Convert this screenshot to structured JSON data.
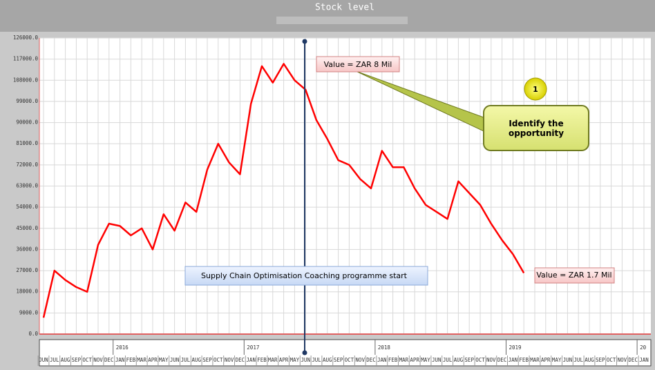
{
  "chart_data": {
    "type": "line",
    "title": "Stock level",
    "categories": [
      "JUN",
      "JUL",
      "AUG",
      "SEP",
      "OCT",
      "NOV",
      "DEC",
      "JAN",
      "FEB",
      "MAR",
      "APR",
      "MAY",
      "JUN",
      "JUL",
      "AUG",
      "SEP",
      "OCT",
      "NOV",
      "DEC",
      "JAN",
      "FEB",
      "MAR",
      "APR",
      "MAY",
      "JUN",
      "JUL",
      "AUG",
      "SEP",
      "OCT",
      "NOV",
      "DEC",
      "JAN",
      "FEB",
      "MAR",
      "APR",
      "MAY",
      "JUN",
      "JUL",
      "AUG",
      "SEP",
      "OCT",
      "NOV",
      "DEC",
      "JAN",
      "FEB",
      "MAR",
      "APR",
      "MAY",
      "JUN",
      "JUL",
      "AUG",
      "SEP",
      "OCT",
      "NOV",
      "DEC",
      "JAN"
    ],
    "year_row": [
      null,
      null,
      null,
      null,
      null,
      null,
      null,
      "2016",
      null,
      null,
      null,
      null,
      null,
      null,
      null,
      null,
      null,
      null,
      null,
      "2017",
      null,
      null,
      null,
      null,
      null,
      null,
      null,
      null,
      null,
      null,
      null,
      "2018",
      null,
      null,
      null,
      null,
      null,
      null,
      null,
      null,
      null,
      null,
      null,
      "2019",
      null,
      null,
      null,
      null,
      null,
      null,
      null,
      null,
      null,
      null,
      null,
      "20"
    ],
    "series": [
      {
        "color": "#ff0000",
        "values": [
          7000,
          27000,
          23000,
          20000,
          18000,
          38000,
          47000,
          46000,
          42000,
          45000,
          36000,
          51000,
          44000,
          56000,
          52000,
          70000,
          81000,
          73000,
          68000,
          98000,
          114000,
          107000,
          115000,
          108000,
          104000,
          91000,
          83000,
          74000,
          72000,
          66000,
          62000,
          78000,
          71000,
          71000,
          62000,
          55000,
          52000,
          49000,
          65000,
          60000,
          55000,
          47000,
          40000,
          34000,
          26000,
          null,
          null,
          null,
          null,
          null,
          null,
          null,
          null,
          null,
          null,
          null
        ]
      }
    ],
    "ylim": [
      0,
      126000
    ],
    "yticks": [
      {
        "value": 0,
        "label": "0.0"
      },
      {
        "value": 9000,
        "label": "9000.0"
      },
      {
        "value": 18000,
        "label": "18000.0"
      },
      {
        "value": 27000,
        "label": "27000.0"
      },
      {
        "value": 36000,
        "label": "36000.0"
      },
      {
        "value": 45000,
        "label": "45000.0"
      },
      {
        "value": 54000,
        "label": "54000.0"
      },
      {
        "value": 63000,
        "label": "63000.0"
      },
      {
        "value": 72000,
        "label": "72000.0"
      },
      {
        "value": 81000,
        "label": "81000.0"
      },
      {
        "value": 90000,
        "label": "90000.0"
      },
      {
        "value": 99000,
        "label": "99000.0"
      },
      {
        "value": 108000,
        "label": "108000.0"
      },
      {
        "value": 117000,
        "label": "117000.0"
      },
      {
        "value": 126000,
        "label": "126000.0"
      }
    ],
    "grid": true,
    "annotations": {
      "start_value": "Value = ZAR 8 Mil",
      "end_value": "Value = ZAR 1.7 Mil",
      "callout": "Identify the opportunity",
      "step": "1",
      "programme": "Supply Chain Optimisation Coaching programme start"
    }
  }
}
